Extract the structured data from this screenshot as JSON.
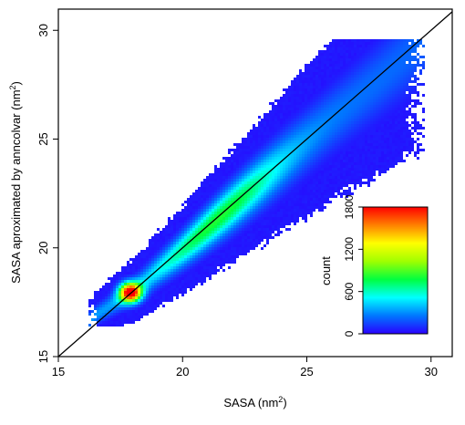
{
  "chart_data": {
    "type": "heatmap",
    "title": "",
    "xlabel": "SASA (nm",
    "xlabel_sup": "2",
    "xlabel_tail": ")",
    "ylabel": "SASA aproximated by anncolvar (nm",
    "ylabel_sup": "2",
    "ylabel_tail": ")",
    "xlim": [
      15,
      31
    ],
    "ylim": [
      15,
      31
    ],
    "x_ticks": [
      15,
      20,
      25,
      30
    ],
    "y_ticks": [
      15,
      20,
      25,
      30
    ],
    "x_tick_labels": [
      "15",
      "20",
      "25",
      "30"
    ],
    "y_tick_labels": [
      "15",
      "20",
      "25",
      "30"
    ],
    "grid": false,
    "reference_line": {
      "slope": 1,
      "intercept": 0,
      "color": "#000000"
    },
    "density": {
      "description_free": true,
      "ridge": [
        [
          16.5,
          16.9
        ],
        [
          18.0,
          18.0
        ],
        [
          20.0,
          19.9
        ],
        [
          22.0,
          21.9
        ],
        [
          24.0,
          23.9
        ],
        [
          26.0,
          25.9
        ],
        [
          28.0,
          27.8
        ]
      ],
      "peak": [
        17.9,
        17.95
      ],
      "peak_count": 1800,
      "x_range": [
        16.2,
        29.8
      ],
      "y_range": [
        16.4,
        29.6
      ]
    },
    "colorbar": {
      "label": "count",
      "min": 0,
      "max": 1800,
      "ticks": [
        0,
        600,
        1200,
        1800
      ],
      "tick_labels": [
        "0",
        "600",
        "1200",
        "1800"
      ],
      "colors": [
        "#2a00ff",
        "#0077ff",
        "#00ffff",
        "#00ff40",
        "#a0ff00",
        "#ffff00",
        "#ff8000",
        "#ff0000"
      ],
      "placement": "bottom-right-inside"
    }
  }
}
